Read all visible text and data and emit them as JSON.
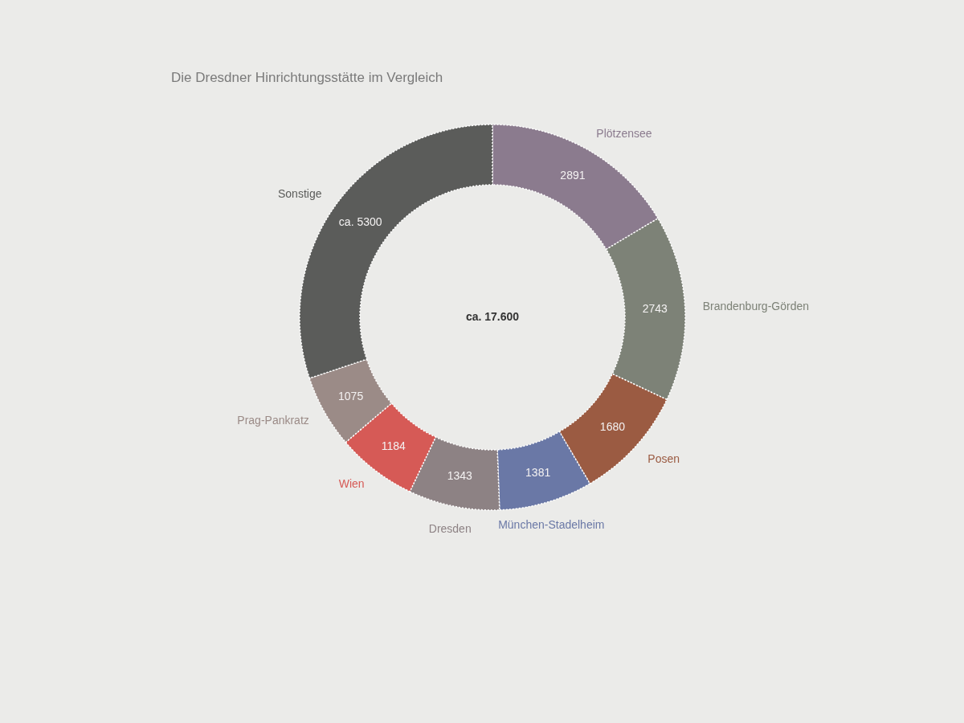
{
  "chart_data": {
    "type": "donut",
    "title": "Die Dresdner Hinrichtungsstätte im Vergleich",
    "categories": [
      "Plötzensee",
      "Brandenburg-Görden",
      "Posen",
      "München-Stadelheim",
      "Dresden",
      "Wien",
      "Prag-Pankratz",
      "Sonstige"
    ],
    "values": [
      2891,
      2743,
      1680,
      1381,
      1343,
      1184,
      1075,
      5300
    ],
    "value_labels": [
      "2891",
      "2743",
      "1680",
      "1381",
      "1343",
      "1184",
      "1075",
      "ca. 5300"
    ],
    "colors": [
      "#8b7b8e",
      "#7d8277",
      "#9b5b42",
      "#6a78a6",
      "#8d8284",
      "#d65a56",
      "#9b8b87",
      "#5b5c5a"
    ],
    "annotations": [
      "ca. 17.600"
    ]
  }
}
